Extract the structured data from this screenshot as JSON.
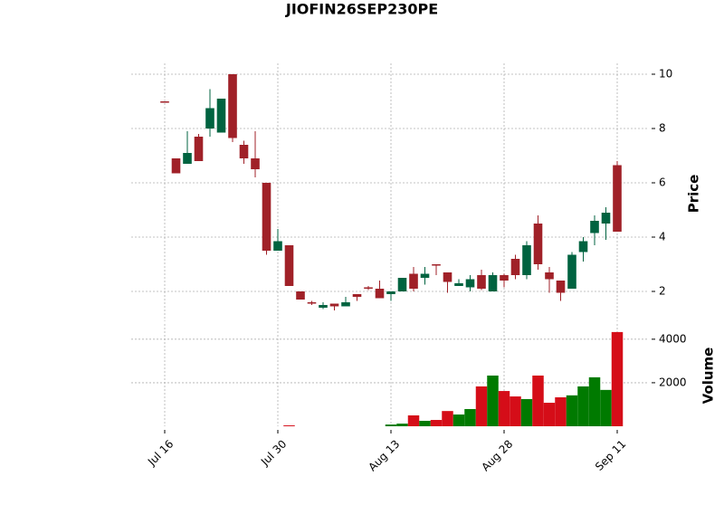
{
  "chart_data": {
    "type": "candlestick",
    "title": "JIOFIN26SEP230PE",
    "categories": [
      "Jul 16",
      null,
      null,
      null,
      null,
      null,
      null,
      null,
      null,
      null,
      "Jul 30",
      null,
      null,
      null,
      null,
      null,
      null,
      null,
      null,
      null,
      "Aug 13",
      null,
      null,
      null,
      null,
      null,
      null,
      null,
      null,
      null,
      "Aug 28",
      null,
      null,
      null,
      null,
      null,
      null,
      null,
      null,
      null,
      "Sep 11"
    ],
    "open": [
      9.0,
      6.9,
      6.7,
      7.7,
      8.0,
      7.85,
      10.0,
      7.4,
      6.9,
      6.0,
      3.5,
      3.7,
      2.0,
      1.6,
      1.4,
      1.55,
      1.45,
      1.9,
      2.15,
      2.1,
      1.9,
      2.0,
      2.65,
      2.5,
      3.0,
      2.7,
      2.2,
      2.15,
      2.6,
      2.0,
      2.6,
      3.2,
      2.6,
      4.5,
      2.7,
      2.4,
      2.1,
      3.45,
      4.15,
      4.5,
      6.65
    ],
    "high": [
      9.0,
      6.9,
      7.9,
      7.8,
      9.45,
      9.1,
      10.0,
      7.55,
      7.9,
      6.0,
      4.3,
      3.7,
      2.0,
      1.65,
      1.6,
      1.55,
      1.8,
      1.9,
      2.2,
      2.4,
      2.0,
      2.5,
      2.9,
      2.9,
      3.0,
      2.7,
      2.45,
      2.6,
      2.8,
      2.7,
      2.65,
      3.35,
      3.85,
      4.8,
      2.9,
      2.4,
      3.45,
      4.0,
      4.8,
      5.1,
      6.8
    ],
    "low": [
      8.95,
      6.35,
      6.7,
      6.8,
      7.7,
      7.85,
      7.5,
      6.7,
      6.2,
      3.35,
      3.5,
      2.2,
      1.7,
      1.5,
      1.35,
      1.3,
      1.45,
      1.65,
      2.05,
      1.75,
      1.65,
      2.0,
      2.0,
      2.25,
      2.6,
      1.95,
      2.2,
      2.0,
      2.05,
      2.0,
      2.15,
      2.45,
      2.45,
      2.8,
      1.95,
      1.65,
      2.1,
      3.1,
      3.7,
      3.9,
      4.2
    ],
    "close": [
      8.95,
      6.35,
      7.1,
      6.8,
      8.75,
      9.1,
      7.65,
      6.9,
      6.5,
      3.5,
      3.85,
      2.2,
      1.7,
      1.55,
      1.5,
      1.45,
      1.6,
      1.8,
      2.1,
      1.75,
      2.0,
      2.5,
      2.1,
      2.65,
      2.95,
      2.35,
      2.3,
      2.45,
      2.1,
      2.6,
      2.4,
      2.6,
      3.7,
      3.0,
      2.45,
      1.95,
      3.35,
      3.85,
      4.6,
      4.9,
      4.2
    ],
    "volume": [
      0,
      0,
      0,
      0,
      0,
      0,
      0,
      0,
      0,
      0,
      0,
      40,
      0,
      0,
      0,
      0,
      0,
      0,
      0,
      0,
      80,
      120,
      500,
      250,
      290,
      700,
      540,
      790,
      1830,
      2330,
      1620,
      1370,
      1250,
      2330,
      1080,
      1330,
      1420,
      1830,
      2250,
      1670,
      4330
    ],
    "ylabel": "Price",
    "ylim": [
      0.9,
      10.4
    ],
    "yticks": [
      2,
      4,
      6,
      8,
      10
    ],
    "volume_label": "Volume",
    "volume_ylim": [
      0,
      4700
    ],
    "volume_yticks": [
      2000,
      4000
    ],
    "up_color": "#006340",
    "down_color": "#a02128",
    "volume_up_color": "#007a00",
    "volume_down_color": "#d50d18",
    "grid": true
  }
}
